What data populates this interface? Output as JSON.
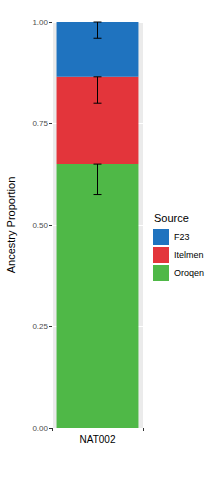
{
  "chart_data": {
    "type": "bar",
    "stacked": true,
    "y_label": "Ancestry Proportion",
    "legend_title": "Source",
    "legend": "right",
    "grid": true,
    "categories": [
      "NAT002"
    ],
    "series": [
      {
        "name": "F23",
        "color": "#1F73BF",
        "values": [
          0.135
        ],
        "errors": [
          0.04
        ]
      },
      {
        "name": "Itelmen",
        "color": "#E3353B",
        "values": [
          0.215
        ],
        "errors": [
          0.065
        ]
      },
      {
        "name": "Oroqen",
        "color": "#4FB847",
        "values": [
          0.65
        ],
        "errors": [
          0.075
        ]
      }
    ],
    "ylim": [
      0,
      1
    ],
    "yticks": [
      {
        "value": 0,
        "label": "0.00"
      },
      {
        "value": 0.25,
        "label": "0.25"
      },
      {
        "value": 0.5,
        "label": "0.50"
      },
      {
        "value": 0.75,
        "label": "0.75"
      },
      {
        "value": 1,
        "label": "1.00"
      }
    ]
  }
}
